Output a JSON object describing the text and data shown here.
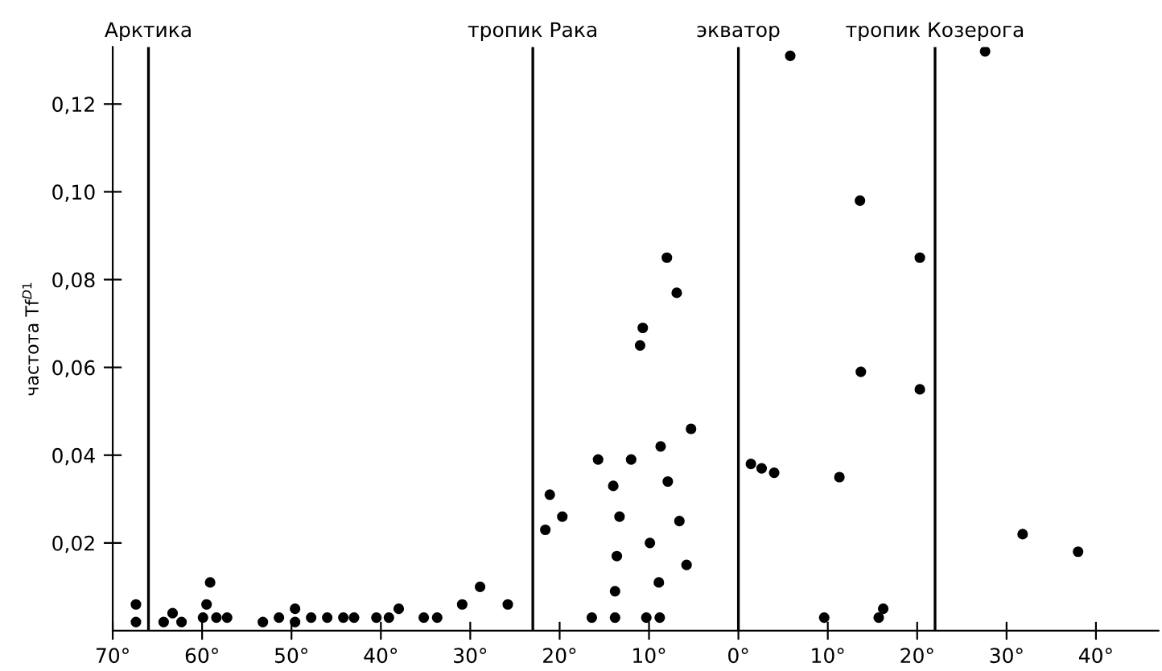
{
  "chart_data": {
    "type": "scatter",
    "ylabel": "частота Tf$^{D1}$",
    "marker": "circle",
    "grid": false,
    "legend": false,
    "xlim": [
      -70,
      47
    ],
    "ylim": [
      0,
      0.133
    ],
    "xticks": [
      {
        "value": -70,
        "label": "70°"
      },
      {
        "value": -60,
        "label": "60°"
      },
      {
        "value": -50,
        "label": "50°"
      },
      {
        "value": -40,
        "label": "40°"
      },
      {
        "value": -30,
        "label": "30°"
      },
      {
        "value": -20,
        "label": "20°"
      },
      {
        "value": -10,
        "label": "10°"
      },
      {
        "value": 0,
        "label": "0°"
      },
      {
        "value": 10,
        "label": "10°"
      },
      {
        "value": 20,
        "label": "20°"
      },
      {
        "value": 30,
        "label": "30°"
      },
      {
        "value": 40,
        "label": "40°"
      }
    ],
    "yticks": [
      {
        "value": 0.02,
        "label": "0,02"
      },
      {
        "value": 0.04,
        "label": "0,04"
      },
      {
        "value": 0.06,
        "label": "0,06"
      },
      {
        "value": 0.08,
        "label": "0,08"
      },
      {
        "value": 0.1,
        "label": "0,10"
      },
      {
        "value": 0.12,
        "label": "0,12"
      }
    ],
    "ref_lines": [
      {
        "axis": "x",
        "value": -66,
        "label": "Арктика",
        "color": "#000000"
      },
      {
        "axis": "x",
        "value": -23,
        "label": "тропик Рака",
        "color": "#000000"
      },
      {
        "axis": "x",
        "value": 0,
        "label": "экватор",
        "color": "#000000"
      },
      {
        "axis": "x",
        "value": 22,
        "label": "тропик Козерога",
        "color": "#000000"
      }
    ],
    "series": [
      {
        "color": "#000000",
        "x": [
          -67.4,
          -67.4,
          -64.3,
          -63.3,
          -62.3,
          -59.9,
          -59.5,
          -59.1,
          -58.4,
          -57.2,
          -53.2,
          -51.4,
          -49.6,
          -49.6,
          -47.8,
          -46.0,
          -44.2,
          -43.0,
          -40.5,
          -39.1,
          -38.0,
          -35.2,
          -33.7,
          -30.9,
          -28.9,
          -25.8,
          -21.6,
          -21.1,
          -19.7,
          -16.4,
          -15.7,
          -14.0,
          -13.8,
          -13.8,
          -13.6,
          -13.3,
          -12.0,
          -11.0,
          -10.7,
          -10.3,
          -9.9,
          -8.9,
          -8.8,
          -8.7,
          -7.9,
          -6.6,
          -5.8,
          -5.3,
          -8.0,
          -6.9,
          1.4,
          2.6,
          4.0,
          9.6,
          11.3,
          13.7,
          15.7,
          16.2,
          20.3,
          31.8,
          38.0,
          5.8,
          13.6,
          20.3,
          27.6
        ],
        "values": [
          0.006,
          0.002,
          0.002,
          0.004,
          0.002,
          0.003,
          0.006,
          0.011,
          0.003,
          0.003,
          0.002,
          0.003,
          0.002,
          0.005,
          0.003,
          0.003,
          0.003,
          0.003,
          0.003,
          0.003,
          0.005,
          0.003,
          0.003,
          0.006,
          0.01,
          0.006,
          0.023,
          0.031,
          0.026,
          0.003,
          0.039,
          0.033,
          0.003,
          0.009,
          0.017,
          0.026,
          0.039,
          0.065,
          0.069,
          0.003,
          0.02,
          0.011,
          0.003,
          0.042,
          0.034,
          0.025,
          0.015,
          0.046,
          0.085,
          0.077,
          0.038,
          0.037,
          0.036,
          0.003,
          0.035,
          0.059,
          0.003,
          0.005,
          0.055,
          0.022,
          0.018,
          0.131,
          0.098,
          0.085,
          0.132
        ]
      }
    ]
  }
}
